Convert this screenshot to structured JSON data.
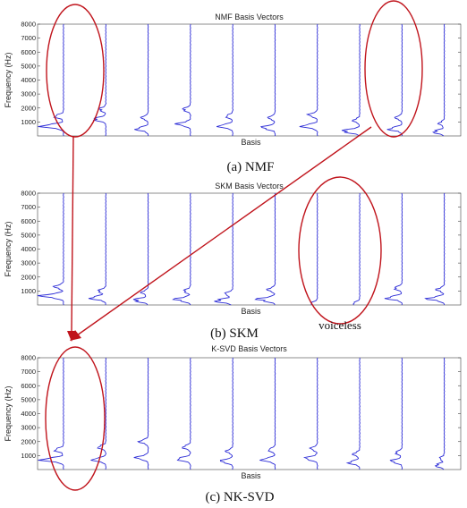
{
  "colors": {
    "trace": "#2b2bd6",
    "annotation": "#c0141c",
    "axis": "#444444"
  },
  "chart_data": [
    {
      "type": "line",
      "title": "NMF Basis Vectors",
      "xlabel": "Basis",
      "ylabel": "Frequency (Hz)",
      "caption": "(a) NMF",
      "ylim": [
        0,
        8000
      ],
      "yticks": [
        1000,
        2000,
        3000,
        4000,
        5000,
        6000,
        7000,
        8000
      ],
      "basis_count": 10,
      "series": [
        {
          "peaks": [
            [
              700,
              1.0
            ],
            [
              1400,
              0.4
            ]
          ]
        },
        {
          "peaks": [
            [
              1200,
              0.55
            ],
            [
              1900,
              0.3
            ]
          ]
        },
        {
          "peaks": [
            [
              500,
              0.55
            ],
            [
              1300,
              0.3
            ]
          ]
        },
        {
          "peaks": [
            [
              850,
              0.6
            ],
            [
              1900,
              0.35
            ]
          ]
        },
        {
          "peaks": [
            [
              700,
              0.65
            ],
            [
              1400,
              0.3
            ]
          ]
        },
        {
          "peaks": [
            [
              600,
              0.6
            ],
            [
              1300,
              0.3
            ]
          ]
        },
        {
          "peaks": [
            [
              700,
              0.7
            ],
            [
              1500,
              0.4
            ]
          ]
        },
        {
          "peaks": [
            [
              350,
              0.8
            ],
            [
              1100,
              0.3
            ]
          ]
        },
        {
          "peaks": [
            [
              500,
              0.6
            ],
            [
              1300,
              0.3
            ]
          ]
        },
        {
          "peaks": [
            [
              300,
              0.5
            ],
            [
              900,
              0.25
            ]
          ]
        }
      ]
    },
    {
      "type": "line",
      "title": "SKM Basis Vectors",
      "xlabel": "Basis",
      "ylabel": "Frequency (Hz)",
      "caption": "(b) SKM",
      "ylim": [
        0,
        8000
      ],
      "yticks": [
        1000,
        2000,
        3000,
        4000,
        5000,
        6000,
        7000,
        8000
      ],
      "basis_count": 10,
      "series": [
        {
          "peaks": [
            [
              650,
              1.0
            ],
            [
              1300,
              0.4
            ]
          ]
        },
        {
          "peaks": [
            [
              500,
              0.7
            ],
            [
              1000,
              0.35
            ]
          ]
        },
        {
          "peaks": [
            [
              350,
              0.65
            ],
            [
              900,
              0.3
            ]
          ]
        },
        {
          "peaks": [
            [
              400,
              0.7
            ],
            [
              1000,
              0.3
            ]
          ]
        },
        {
          "peaks": [
            [
              300,
              0.8
            ],
            [
              800,
              0.35
            ]
          ]
        },
        {
          "peaks": [
            [
              400,
              0.8
            ],
            [
              1100,
              0.35
            ]
          ]
        },
        {
          "peaks": [
            [
              100,
              0.3
            ]
          ]
        },
        {
          "peaks": [
            [
              100,
              0.3
            ]
          ]
        },
        {
          "peaks": [
            [
              500,
              0.7
            ],
            [
              1200,
              0.35
            ]
          ]
        },
        {
          "peaks": [
            [
              450,
              0.75
            ],
            [
              1100,
              0.35
            ]
          ]
        }
      ]
    },
    {
      "type": "line",
      "title": "K-SVD Basis Vectors",
      "xlabel": "Basis",
      "ylabel": "Frequency (Hz)",
      "caption": "(c) NK-SVD",
      "ylim": [
        0,
        8000
      ],
      "yticks": [
        1000,
        2000,
        3000,
        4000,
        5000,
        6000,
        7000,
        8000
      ],
      "basis_count": 10,
      "series": [
        {
          "peaks": [
            [
              700,
              1.0
            ],
            [
              1400,
              0.4
            ]
          ]
        },
        {
          "peaks": [
            [
              700,
              0.6
            ],
            [
              1600,
              0.35
            ]
          ]
        },
        {
          "peaks": [
            [
              850,
              0.55
            ],
            [
              2000,
              0.4
            ]
          ]
        },
        {
          "peaks": [
            [
              750,
              0.6
            ],
            [
              1600,
              0.35
            ]
          ]
        },
        {
          "peaks": [
            [
              600,
              0.55
            ],
            [
              1300,
              0.3
            ]
          ]
        },
        {
          "peaks": [
            [
              700,
              0.6
            ],
            [
              1400,
              0.3
            ]
          ]
        },
        {
          "peaks": [
            [
              800,
              0.55
            ],
            [
              1500,
              0.3
            ]
          ]
        },
        {
          "peaks": [
            [
              500,
              0.5
            ],
            [
              1100,
              0.3
            ]
          ]
        },
        {
          "peaks": [
            [
              600,
              0.5
            ],
            [
              1200,
              0.3
            ]
          ]
        },
        {
          "peaks": [
            [
              300,
              0.4
            ],
            [
              800,
              0.2
            ]
          ]
        }
      ]
    }
  ],
  "annotation": {
    "label": "voiceless"
  }
}
